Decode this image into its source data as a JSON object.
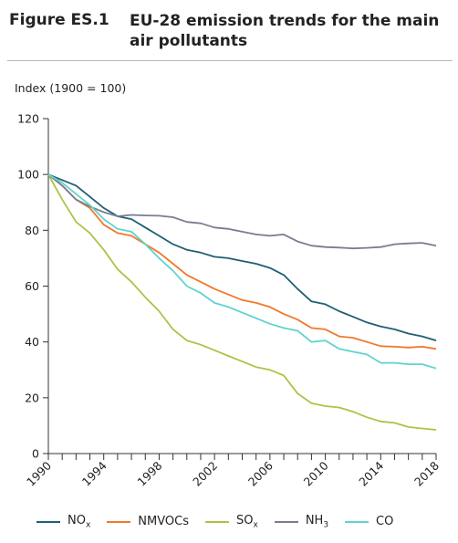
{
  "figure": {
    "number": "Figure ES.1",
    "title": "EU-28 emission trends for the main air pollutants"
  },
  "chart_data": {
    "type": "line",
    "ylabel": "Index (1900 = 100)",
    "xlabel": "",
    "ylim": [
      0,
      120
    ],
    "yticks": [
      0,
      20,
      40,
      60,
      80,
      100,
      120
    ],
    "xlim": [
      1990,
      2018
    ],
    "xtick_labels": [
      "1990",
      "1994",
      "1998",
      "2002",
      "2006",
      "2010",
      "2014",
      "2018"
    ],
    "x": [
      1990,
      1991,
      1992,
      1993,
      1994,
      1995,
      1996,
      1997,
      1998,
      1999,
      2000,
      2001,
      2002,
      2003,
      2004,
      2005,
      2006,
      2007,
      2008,
      2009,
      2010,
      2011,
      2012,
      2013,
      2014,
      2015,
      2016,
      2017,
      2018
    ],
    "legend_position": "bottom",
    "grid": false,
    "series": [
      {
        "name": "NO",
        "sub": "x",
        "color": "#1f5f74",
        "values": [
          100,
          98,
          96,
          92,
          88,
          85,
          84,
          81,
          78,
          75,
          73,
          72,
          70.5,
          70,
          69,
          68,
          66.5,
          64,
          59,
          54.5,
          53.5,
          51,
          49,
          47,
          45.5,
          44.5,
          43,
          42,
          40.5
        ]
      },
      {
        "name": "NMVOCs",
        "sub": "",
        "color": "#f0782a",
        "values": [
          100,
          96,
          91,
          88,
          82,
          79,
          78,
          75,
          72,
          68,
          64,
          61.5,
          59,
          57,
          55,
          54,
          52.5,
          50,
          48,
          45,
          44.5,
          42,
          41.5,
          40,
          38.5,
          38.3,
          38,
          38.3,
          37.5
        ]
      },
      {
        "name": "SO",
        "sub": "x",
        "color": "#a8c545",
        "values": [
          100,
          91,
          83,
          79,
          73,
          66,
          61.5,
          56,
          51,
          44.5,
          40.5,
          39,
          37,
          35,
          33,
          31,
          30,
          28,
          21.5,
          18,
          17,
          16.5,
          15,
          13,
          11.5,
          11,
          9.5,
          9,
          8.5
        ]
      },
      {
        "name": "NH",
        "sub": "3",
        "color": "#7a7c92",
        "values": [
          100,
          96,
          91,
          88.5,
          86.5,
          85,
          85.5,
          85.3,
          85.2,
          84.7,
          83,
          82.5,
          81,
          80.5,
          79.5,
          78.5,
          78,
          78.5,
          76,
          74.5,
          74,
          73.8,
          73.5,
          73.7,
          74,
          75,
          75.3,
          75.5,
          74.5
        ]
      },
      {
        "name": "CO",
        "sub": "",
        "color": "#5fd3cf",
        "values": [
          100,
          97,
          93,
          89,
          84,
          80.5,
          79.5,
          75,
          70,
          65.5,
          60,
          57.5,
          54,
          52.5,
          50.5,
          48.5,
          46.5,
          45,
          44,
          40,
          40.5,
          37.5,
          36.5,
          35.5,
          32.5,
          32.5,
          32,
          32,
          30.5
        ]
      }
    ]
  }
}
